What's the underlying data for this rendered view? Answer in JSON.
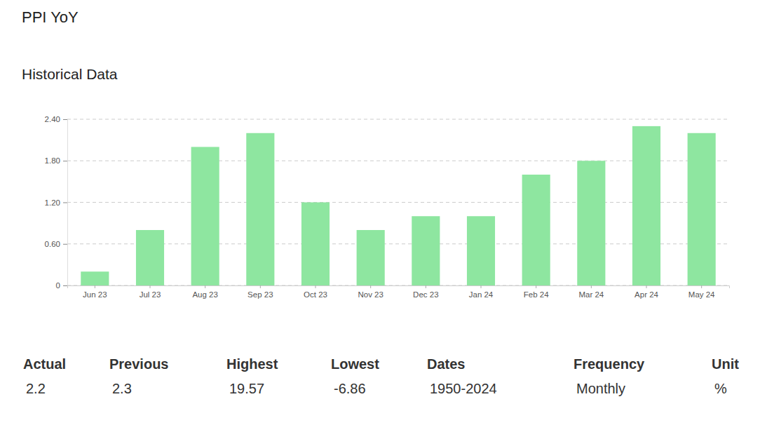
{
  "chart_data": {
    "type": "bar",
    "title": "PPI YoY",
    "subtitle": "Historical Data",
    "categories": [
      "Jun 23",
      "Jul 23",
      "Aug 23",
      "Sep 23",
      "Oct 23",
      "Nov 23",
      "Dec 23",
      "Jan 24",
      "Feb 24",
      "Mar 24",
      "Apr 24",
      "May 24"
    ],
    "values": [
      0.2,
      0.8,
      2.0,
      2.2,
      1.2,
      0.8,
      1.0,
      1.0,
      1.6,
      1.8,
      2.3,
      2.2
    ],
    "color": "#8ee6a0",
    "ylim": [
      0,
      2.4
    ],
    "yticks": [
      0,
      {
        "value": 0.6,
        "label": "0.60"
      },
      {
        "value": 1.2,
        "label": "1.20"
      },
      {
        "value": 1.8,
        "label": "1.80"
      },
      {
        "value": 2.4,
        "label": "2.40"
      }
    ],
    "grid": true
  },
  "stats": [
    {
      "label": "Actual",
      "value": 2.2
    },
    {
      "label": "Previous",
      "value": 2.3
    },
    {
      "label": "Highest",
      "value": 19.57
    },
    {
      "label": "Lowest",
      "value": -6.86
    },
    {
      "label": "Dates",
      "value": "1950-2024"
    },
    {
      "label": "Frequency",
      "value": "Monthly"
    },
    {
      "label": "Unit",
      "value": "%"
    }
  ]
}
